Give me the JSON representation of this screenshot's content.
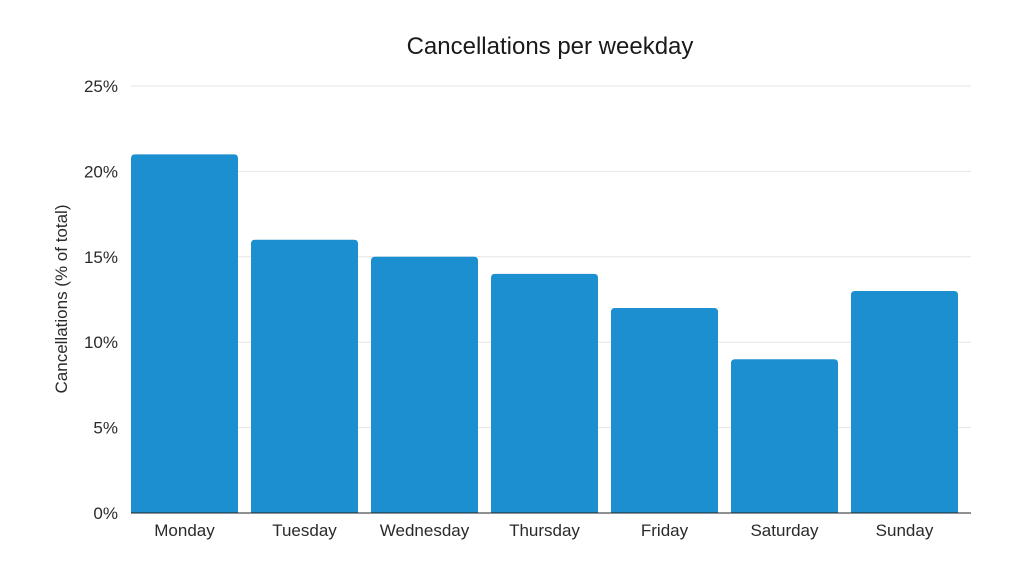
{
  "chart_data": {
    "type": "bar",
    "title": "Cancellations per weekday",
    "xlabel": "",
    "ylabel": "Cancellations (% of total)",
    "categories": [
      "Monday",
      "Tuesday",
      "Wednesday",
      "Thursday",
      "Friday",
      "Saturday",
      "Sunday"
    ],
    "values": [
      21,
      16,
      15,
      14,
      12,
      9,
      13
    ],
    "unit": "%",
    "ylim": [
      0,
      25
    ],
    "yticks": [
      0,
      5,
      10,
      15,
      20,
      25
    ],
    "ytick_labels": [
      "0%",
      "5%",
      "10%",
      "15%",
      "20%",
      "25%"
    ],
    "grid": true,
    "legend": "none",
    "bar_color": "#1b8fd0"
  }
}
